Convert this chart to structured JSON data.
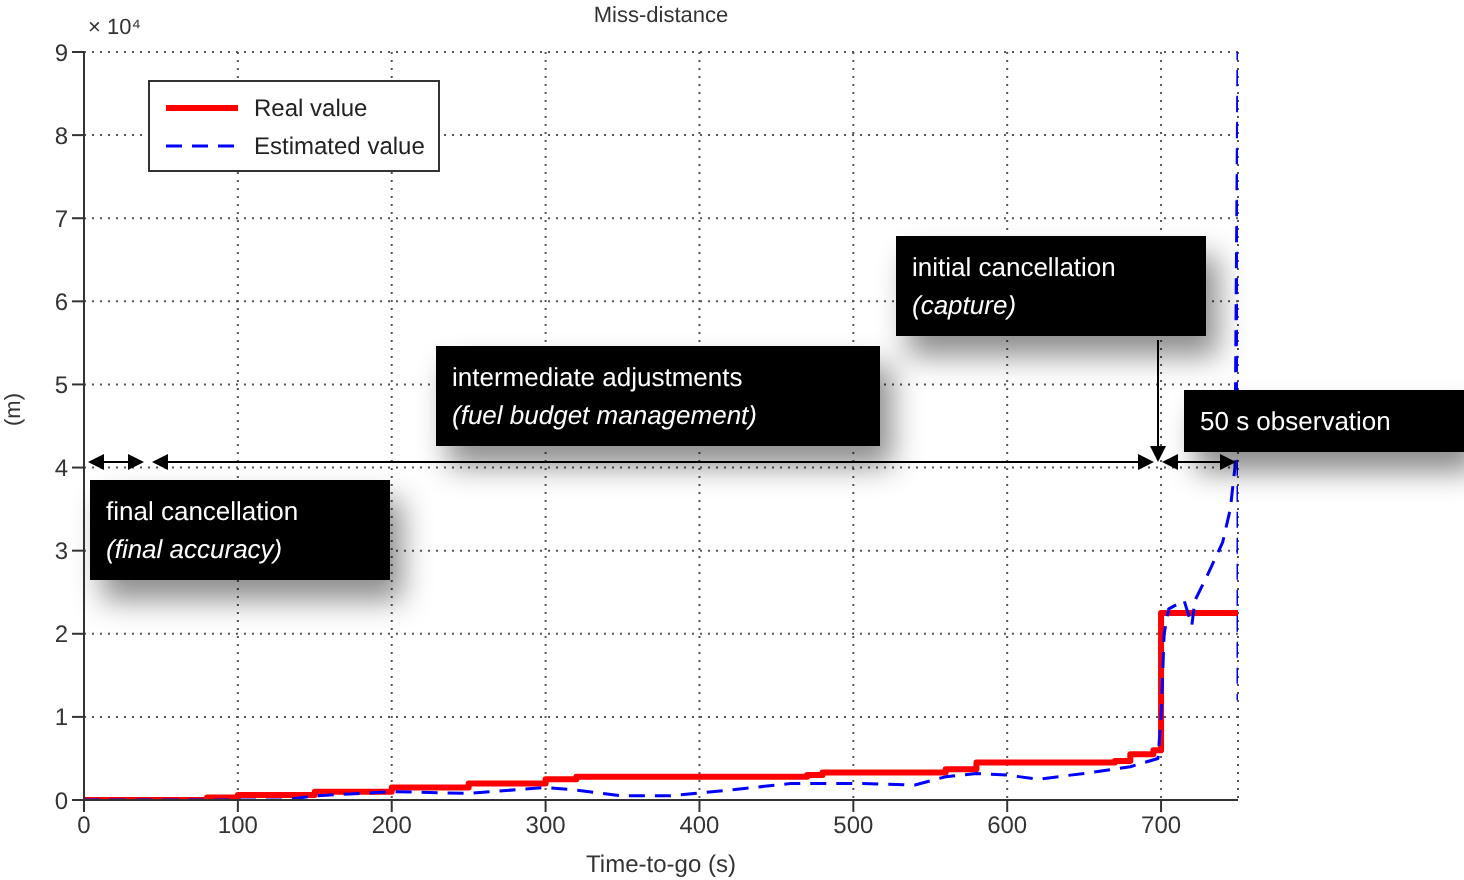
{
  "chart_data": {
    "type": "line",
    "title": "Miss-distance",
    "xlabel": "Time-to-go (s)",
    "ylabel": "(m)",
    "xlim": [
      0,
      750
    ],
    "xticks": [
      0,
      100,
      200,
      300,
      400,
      500,
      600,
      700
    ],
    "ylim": [
      0,
      9
    ],
    "yticks": [
      0,
      1,
      2,
      3,
      4,
      5,
      6,
      7,
      8,
      9
    ],
    "grid": true,
    "legend": "top left",
    "series": [
      {
        "name": "Real value",
        "type": "step",
        "color": "#ff0000",
        "line_style": "solid",
        "x": [
          0,
          80,
          100,
          150,
          200,
          250,
          300,
          320,
          470,
          480,
          560,
          580,
          670,
          680,
          695,
          700,
          750
        ],
        "values": [
          0,
          0.03,
          0.06,
          0.1,
          0.15,
          0.2,
          0.25,
          0.28,
          0.3,
          0.33,
          0.37,
          0.45,
          0.47,
          0.55,
          0.6,
          2.25,
          2.25
        ]
      },
      {
        "name": "Estimated value",
        "color": "#0000ff",
        "line_style": "dashed",
        "x": [
          0,
          80,
          130,
          150,
          200,
          250,
          300,
          320,
          350,
          380,
          420,
          460,
          500,
          540,
          560,
          580,
          600,
          620,
          650,
          680,
          698,
          700,
          702,
          705,
          715,
          720,
          722,
          730,
          740,
          745,
          748,
          750,
          750
        ],
        "values": [
          0,
          0,
          0,
          0.05,
          0.1,
          0.08,
          0.15,
          0.12,
          0.05,
          0.05,
          0.12,
          0.2,
          0.2,
          0.18,
          0.28,
          0.32,
          0.3,
          0.25,
          0.32,
          0.4,
          0.5,
          1,
          2,
          2.3,
          2.4,
          2.1,
          2.4,
          2.7,
          3.1,
          3.5,
          4,
          9,
          1.2
        ]
      }
    ],
    "annotations": [
      "× 10⁴",
      "initial cancellation\n(capture)",
      "intermediate adjustments\n(fuel budget management)",
      "50 s observation",
      "final cancellation\n(final accuracy)"
    ]
  }
}
